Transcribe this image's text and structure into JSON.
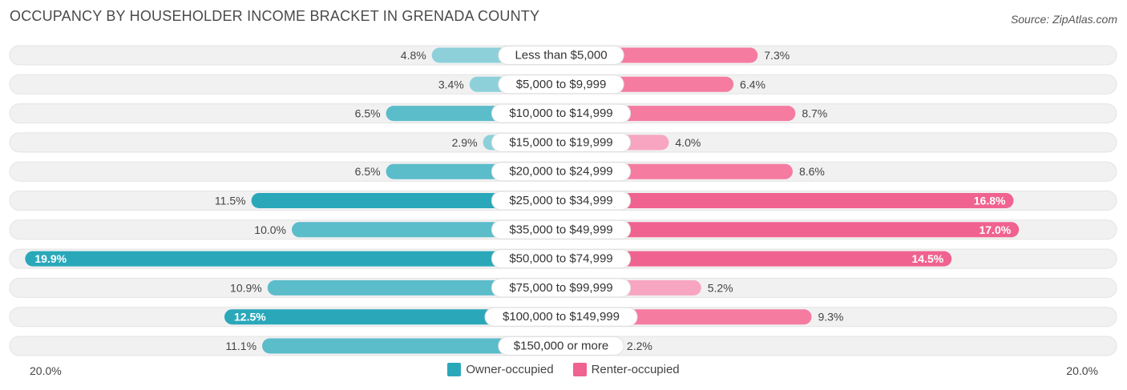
{
  "title": "OCCUPANCY BY HOUSEHOLDER INCOME BRACKET IN GRENADA COUNTY",
  "source": "Source: ZipAtlas.com",
  "colors": {
    "owner": "#5bbcca",
    "owner_light": "#8dd0da",
    "owner_strong": "#2aa8ba",
    "renter": "#f57ba1",
    "renter_light": "#f7a5c0",
    "renter_strong": "#f0628f",
    "track": "#f1f1f1"
  },
  "chart_data": {
    "type": "bar",
    "orientation": "horizontal-diverging",
    "categories": [
      "Less than $5,000",
      "$5,000 to $9,999",
      "$10,000 to $14,999",
      "$15,000 to $19,999",
      "$20,000 to $24,999",
      "$25,000 to $34,999",
      "$35,000 to $49,999",
      "$50,000 to $74,999",
      "$75,000 to $99,999",
      "$100,000 to $149,999",
      "$150,000 or more"
    ],
    "series": [
      {
        "name": "Owner-occupied",
        "values": [
          4.8,
          3.4,
          6.5,
          2.9,
          6.5,
          11.5,
          10.0,
          19.9,
          10.9,
          12.5,
          11.1
        ],
        "labels": [
          "4.8%",
          "3.4%",
          "6.5%",
          "2.9%",
          "6.5%",
          "11.5%",
          "10.0%",
          "19.9%",
          "10.9%",
          "12.5%",
          "11.1%"
        ]
      },
      {
        "name": "Renter-occupied",
        "values": [
          7.3,
          6.4,
          8.7,
          4.0,
          8.6,
          16.8,
          17.0,
          14.5,
          5.2,
          9.3,
          2.2
        ],
        "labels": [
          "7.3%",
          "6.4%",
          "8.7%",
          "4.0%",
          "8.6%",
          "16.8%",
          "17.0%",
          "14.5%",
          "5.2%",
          "9.3%",
          "2.2%"
        ]
      }
    ],
    "xlim": [
      -20,
      20
    ],
    "axis_left_label": "20.0%",
    "axis_right_label": "20.0%",
    "legend_position": "bottom-center"
  }
}
